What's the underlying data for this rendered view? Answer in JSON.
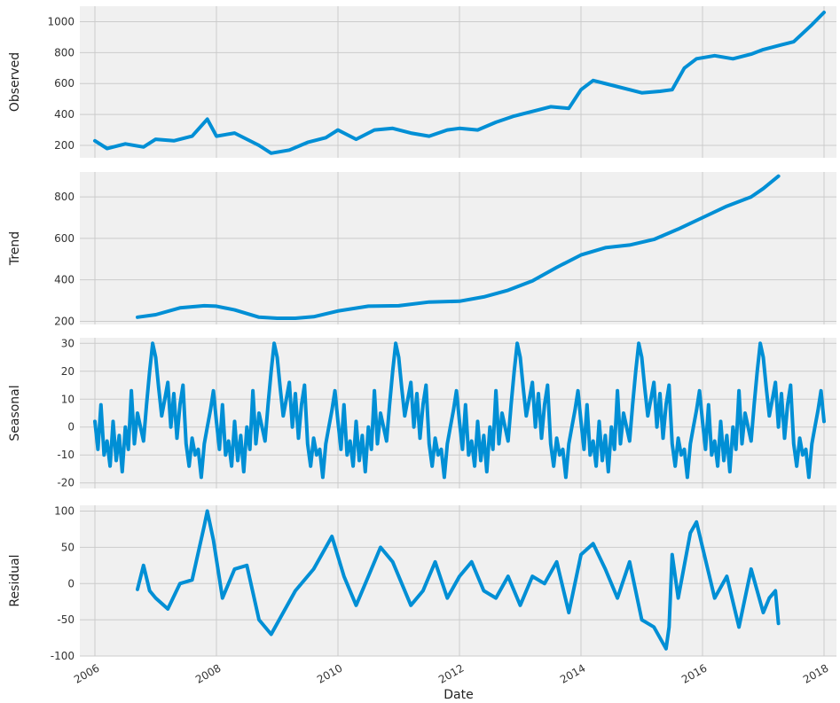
{
  "figure": {
    "xlabel": "Date",
    "x_ticks": [
      "2006",
      "2008",
      "2010",
      "2012",
      "2014",
      "2016",
      "2018"
    ],
    "line_color": "#008fd5",
    "panel_bg": "#f0f0f0",
    "grid_color": "#cbcbcb"
  },
  "chart_data": [
    {
      "type": "line",
      "ylabel": "Observed",
      "xlim": [
        2006,
        2018
      ],
      "ylim": [
        120,
        1100
      ],
      "yticks": [
        200,
        400,
        600,
        800,
        1000
      ],
      "x": [
        2006.0,
        2006.2,
        2006.5,
        2006.8,
        2007.0,
        2007.3,
        2007.6,
        2007.85,
        2008.0,
        2008.3,
        2008.7,
        2008.9,
        2009.2,
        2009.5,
        2009.8,
        2010.0,
        2010.3,
        2010.6,
        2010.9,
        2011.2,
        2011.5,
        2011.8,
        2012.0,
        2012.3,
        2012.6,
        2012.9,
        2013.2,
        2013.5,
        2013.8,
        2014.0,
        2014.2,
        2014.5,
        2014.8,
        2015.0,
        2015.3,
        2015.5,
        2015.7,
        2015.9,
        2016.2,
        2016.5,
        2016.8,
        2017.0,
        2017.3,
        2017.5,
        2017.8,
        2018.0
      ],
      "y": [
        230,
        180,
        210,
        190,
        240,
        230,
        260,
        370,
        260,
        280,
        200,
        150,
        170,
        220,
        250,
        300,
        240,
        300,
        310,
        280,
        260,
        300,
        310,
        300,
        350,
        390,
        420,
        450,
        440,
        560,
        620,
        590,
        560,
        540,
        550,
        560,
        700,
        760,
        780,
        760,
        790,
        820,
        850,
        870,
        980,
        1060
      ]
    },
    {
      "type": "line",
      "ylabel": "Trend",
      "xlim": [
        2006,
        2018
      ],
      "ylim": [
        185,
        920
      ],
      "yticks": [
        200,
        400,
        600,
        800
      ],
      "x": [
        2006.7,
        2007.0,
        2007.4,
        2007.8,
        2008.0,
        2008.3,
        2008.7,
        2009.0,
        2009.3,
        2009.6,
        2010.0,
        2010.5,
        2011.0,
        2011.5,
        2012.0,
        2012.4,
        2012.8,
        2013.2,
        2013.6,
        2014.0,
        2014.4,
        2014.8,
        2015.2,
        2015.6,
        2016.0,
        2016.4,
        2016.8,
        2017.0,
        2017.25
      ],
      "y": [
        220,
        232,
        265,
        275,
        273,
        255,
        220,
        215,
        215,
        222,
        250,
        273,
        275,
        293,
        297,
        318,
        350,
        395,
        460,
        520,
        555,
        568,
        595,
        645,
        700,
        755,
        800,
        840,
        900
      ]
    },
    {
      "type": "line",
      "ylabel": "Seasonal",
      "xlim": [
        2006,
        2018
      ],
      "ylim": [
        -22,
        32
      ],
      "yticks": [
        -20,
        -10,
        0,
        10,
        20,
        30
      ],
      "x": [
        2006.0,
        2006.05,
        2006.1,
        2006.15,
        2006.2,
        2006.25,
        2006.3,
        2006.35,
        2006.4,
        2006.45,
        2006.5,
        2006.55,
        2006.6,
        2006.65,
        2006.7,
        2006.75,
        2006.8,
        2006.85,
        2006.9,
        2006.95,
        2007.0,
        2007.05,
        2007.1,
        2007.15,
        2007.2,
        2007.25,
        2007.3,
        2007.35,
        2007.4,
        2007.45,
        2007.5,
        2007.55,
        2007.6,
        2007.65,
        2007.7,
        2007.75,
        2007.8,
        2007.85,
        2007.9,
        2007.95,
        2008.0,
        2008.05,
        2008.1,
        2008.15,
        2008.2,
        2008.25,
        2008.3,
        2008.35,
        2008.4,
        2008.45,
        2008.5,
        2008.55,
        2008.6,
        2008.65,
        2008.7,
        2008.75,
        2008.8,
        2008.85,
        2008.9,
        2008.95,
        2009.0,
        2009.05,
        2009.1,
        2009.15,
        2009.2,
        2009.25,
        2009.3,
        2009.35,
        2009.4,
        2009.45,
        2009.5,
        2009.55,
        2009.6,
        2009.65,
        2009.7,
        2009.75,
        2009.8,
        2009.85,
        2009.9,
        2009.95,
        2010.0,
        2010.05,
        2010.1,
        2010.15,
        2010.2,
        2010.25,
        2010.3,
        2010.35,
        2010.4,
        2010.45,
        2010.5,
        2010.55,
        2010.6,
        2010.65,
        2010.7,
        2010.75,
        2010.8,
        2010.85,
        2010.9,
        2010.95,
        2011.0,
        2011.05,
        2011.1,
        2011.15,
        2011.2,
        2011.25,
        2011.3,
        2011.35,
        2011.4,
        2011.45,
        2011.5,
        2011.55,
        2011.6,
        2011.65,
        2011.7,
        2011.75,
        2011.8,
        2011.85,
        2011.9,
        2011.95,
        2012.0,
        2012.05,
        2012.1,
        2012.15,
        2012.2,
        2012.25,
        2012.3,
        2012.35,
        2012.4,
        2012.45,
        2012.5,
        2012.55,
        2012.6,
        2012.65,
        2012.7,
        2012.75,
        2012.8,
        2012.85,
        2012.9,
        2012.95,
        2013.0,
        2013.05,
        2013.1,
        2013.15,
        2013.2,
        2013.25,
        2013.3,
        2013.35,
        2013.4,
        2013.45,
        2013.5,
        2013.55,
        2013.6,
        2013.65,
        2013.7,
        2013.75,
        2013.8,
        2013.85,
        2013.9,
        2013.95,
        2014.0,
        2014.05,
        2014.1,
        2014.15,
        2014.2,
        2014.25,
        2014.3,
        2014.35,
        2014.4,
        2014.45,
        2014.5,
        2014.55,
        2014.6,
        2014.65,
        2014.7,
        2014.75,
        2014.8,
        2014.85,
        2014.9,
        2014.95,
        2015.0,
        2015.05,
        2015.1,
        2015.15,
        2015.2,
        2015.25,
        2015.3,
        2015.35,
        2015.4,
        2015.45,
        2015.5,
        2015.55,
        2015.6,
        2015.65,
        2015.7,
        2015.75,
        2015.8,
        2015.85,
        2015.9,
        2015.95,
        2016.0,
        2016.05,
        2016.1,
        2016.15,
        2016.2,
        2016.25,
        2016.3,
        2016.35,
        2016.4,
        2016.45,
        2016.5,
        2016.55,
        2016.6,
        2016.65,
        2016.7,
        2016.75,
        2016.8,
        2016.85,
        2016.9,
        2016.95,
        2017.0,
        2017.05,
        2017.1,
        2017.15,
        2017.2,
        2017.25,
        2017.3,
        2017.35,
        2017.4,
        2017.45,
        2017.5,
        2017.55,
        2017.6,
        2017.65,
        2017.7,
        2017.75,
        2017.8,
        2017.85,
        2017.9,
        2017.95,
        2018.0
      ],
      "y": [
        2,
        -8,
        8,
        -10,
        -5,
        -14,
        2,
        -12,
        -3,
        -16,
        0,
        -8,
        13,
        -6,
        5,
        0,
        -5,
        8,
        20,
        30,
        25,
        14,
        4,
        10,
        16,
        0,
        12,
        -4,
        8,
        15,
        -6,
        -14,
        -4,
        -10,
        -8,
        -18,
        -6,
        0,
        6,
        13,
        2,
        -8,
        8,
        -10,
        -5,
        -14,
        2,
        -12,
        -3,
        -16,
        0,
        -8,
        13,
        -6,
        5,
        0,
        -5,
        8,
        20,
        30,
        25,
        14,
        4,
        10,
        16,
        0,
        12,
        -4,
        8,
        15,
        -6,
        -14,
        -4,
        -10,
        -8,
        -18,
        -6,
        0,
        6,
        13,
        2,
        -8,
        8,
        -10,
        -5,
        -14,
        2,
        -12,
        -3,
        -16,
        0,
        -8,
        13,
        -6,
        5,
        0,
        -5,
        8,
        20,
        30,
        25,
        14,
        4,
        10,
        16,
        0,
        12,
        -4,
        8,
        15,
        -6,
        -14,
        -4,
        -10,
        -8,
        -18,
        -6,
        0,
        6,
        13,
        2,
        -8,
        8,
        -10,
        -5,
        -14,
        2,
        -12,
        -3,
        -16,
        0,
        -8,
        13,
        -6,
        5,
        0,
        -5,
        8,
        20,
        30,
        25,
        14,
        4,
        10,
        16,
        0,
        12,
        -4,
        8,
        15,
        -6,
        -14,
        -4,
        -10,
        -8,
        -18,
        -6,
        0,
        6,
        13,
        2,
        -8,
        8,
        -10,
        -5,
        -14,
        2,
        -12,
        -3,
        -16,
        0,
        -8,
        13,
        -6,
        5,
        0,
        -5,
        8,
        20,
        30,
        25,
        14,
        4,
        10,
        16,
        0,
        12,
        -4,
        8,
        15,
        -6,
        -14,
        -4,
        -10,
        -8,
        -18,
        -6,
        0,
        6,
        13,
        2,
        -8,
        8,
        -10,
        -5,
        -14,
        2,
        -12,
        -3,
        -16,
        0,
        -8,
        13,
        -6,
        5,
        0,
        -5,
        8,
        20,
        30,
        25,
        14,
        4,
        10,
        16,
        0,
        12,
        -4,
        8,
        15,
        -6,
        -14,
        -4,
        -10,
        -8,
        -18,
        -6,
        0,
        6,
        13,
        2
      ]
    },
    {
      "type": "line",
      "ylabel": "Residual",
      "xlim": [
        2006,
        2018
      ],
      "ylim": [
        -100,
        108
      ],
      "yticks": [
        -100,
        -50,
        0,
        50,
        100
      ],
      "x": [
        2006.7,
        2006.8,
        2006.9,
        2007.0,
        2007.2,
        2007.4,
        2007.6,
        2007.8,
        2007.85,
        2007.95,
        2008.1,
        2008.3,
        2008.5,
        2008.7,
        2008.9,
        2009.1,
        2009.3,
        2009.6,
        2009.9,
        2010.1,
        2010.3,
        2010.5,
        2010.7,
        2010.9,
        2011.2,
        2011.4,
        2011.6,
        2011.8,
        2012.0,
        2012.2,
        2012.4,
        2012.6,
        2012.8,
        2013.0,
        2013.2,
        2013.4,
        2013.6,
        2013.8,
        2014.0,
        2014.2,
        2014.4,
        2014.6,
        2014.8,
        2015.0,
        2015.2,
        2015.4,
        2015.45,
        2015.5,
        2015.6,
        2015.8,
        2015.9,
        2016.0,
        2016.2,
        2016.4,
        2016.6,
        2016.8,
        2017.0,
        2017.1,
        2017.2,
        2017.25
      ],
      "y": [
        -8,
        25,
        -10,
        -20,
        -35,
        0,
        5,
        80,
        100,
        60,
        -20,
        20,
        25,
        -50,
        -70,
        -40,
        -10,
        20,
        65,
        10,
        -30,
        10,
        50,
        30,
        -30,
        -10,
        30,
        -20,
        10,
        30,
        -10,
        -20,
        10,
        -30,
        10,
        0,
        30,
        -40,
        40,
        55,
        20,
        -20,
        30,
        -50,
        -60,
        -90,
        -60,
        40,
        -20,
        70,
        85,
        50,
        -20,
        10,
        -60,
        20,
        -40,
        -20,
        -10,
        -55
      ]
    }
  ]
}
